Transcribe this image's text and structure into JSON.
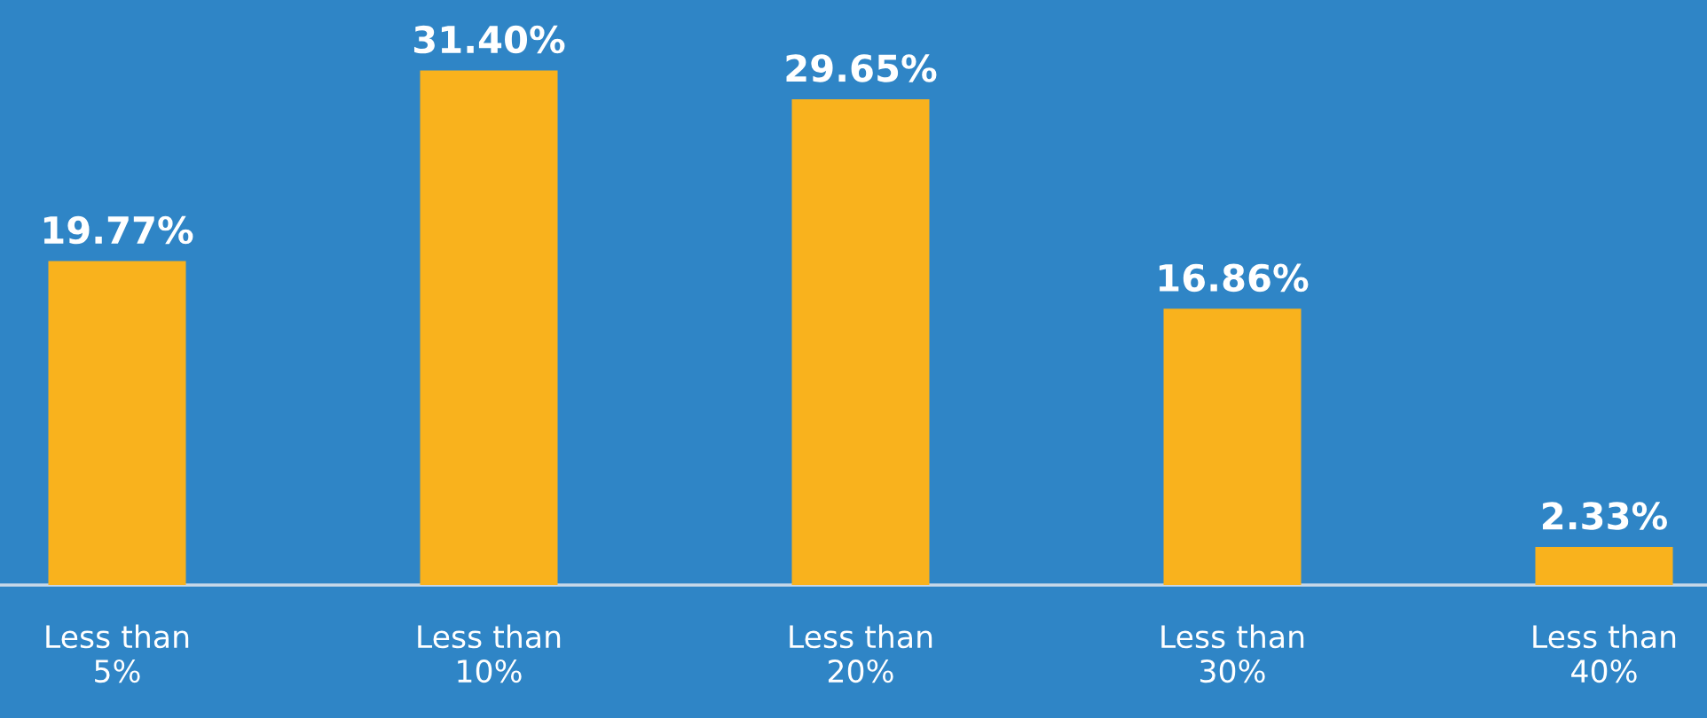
{
  "chart_data": {
    "type": "bar",
    "categories": [
      "Less than 5%",
      "Less than 10%",
      "Less than 20%",
      "Less than 30%",
      "Less than 40%"
    ],
    "values": [
      19.77,
      31.4,
      29.65,
      16.86,
      2.33
    ],
    "value_labels": [
      "19.77%",
      "31.40%",
      "29.65%",
      "16.86%",
      "2.33%"
    ],
    "color": "#f9b21d",
    "grid": false,
    "legend": false
  }
}
